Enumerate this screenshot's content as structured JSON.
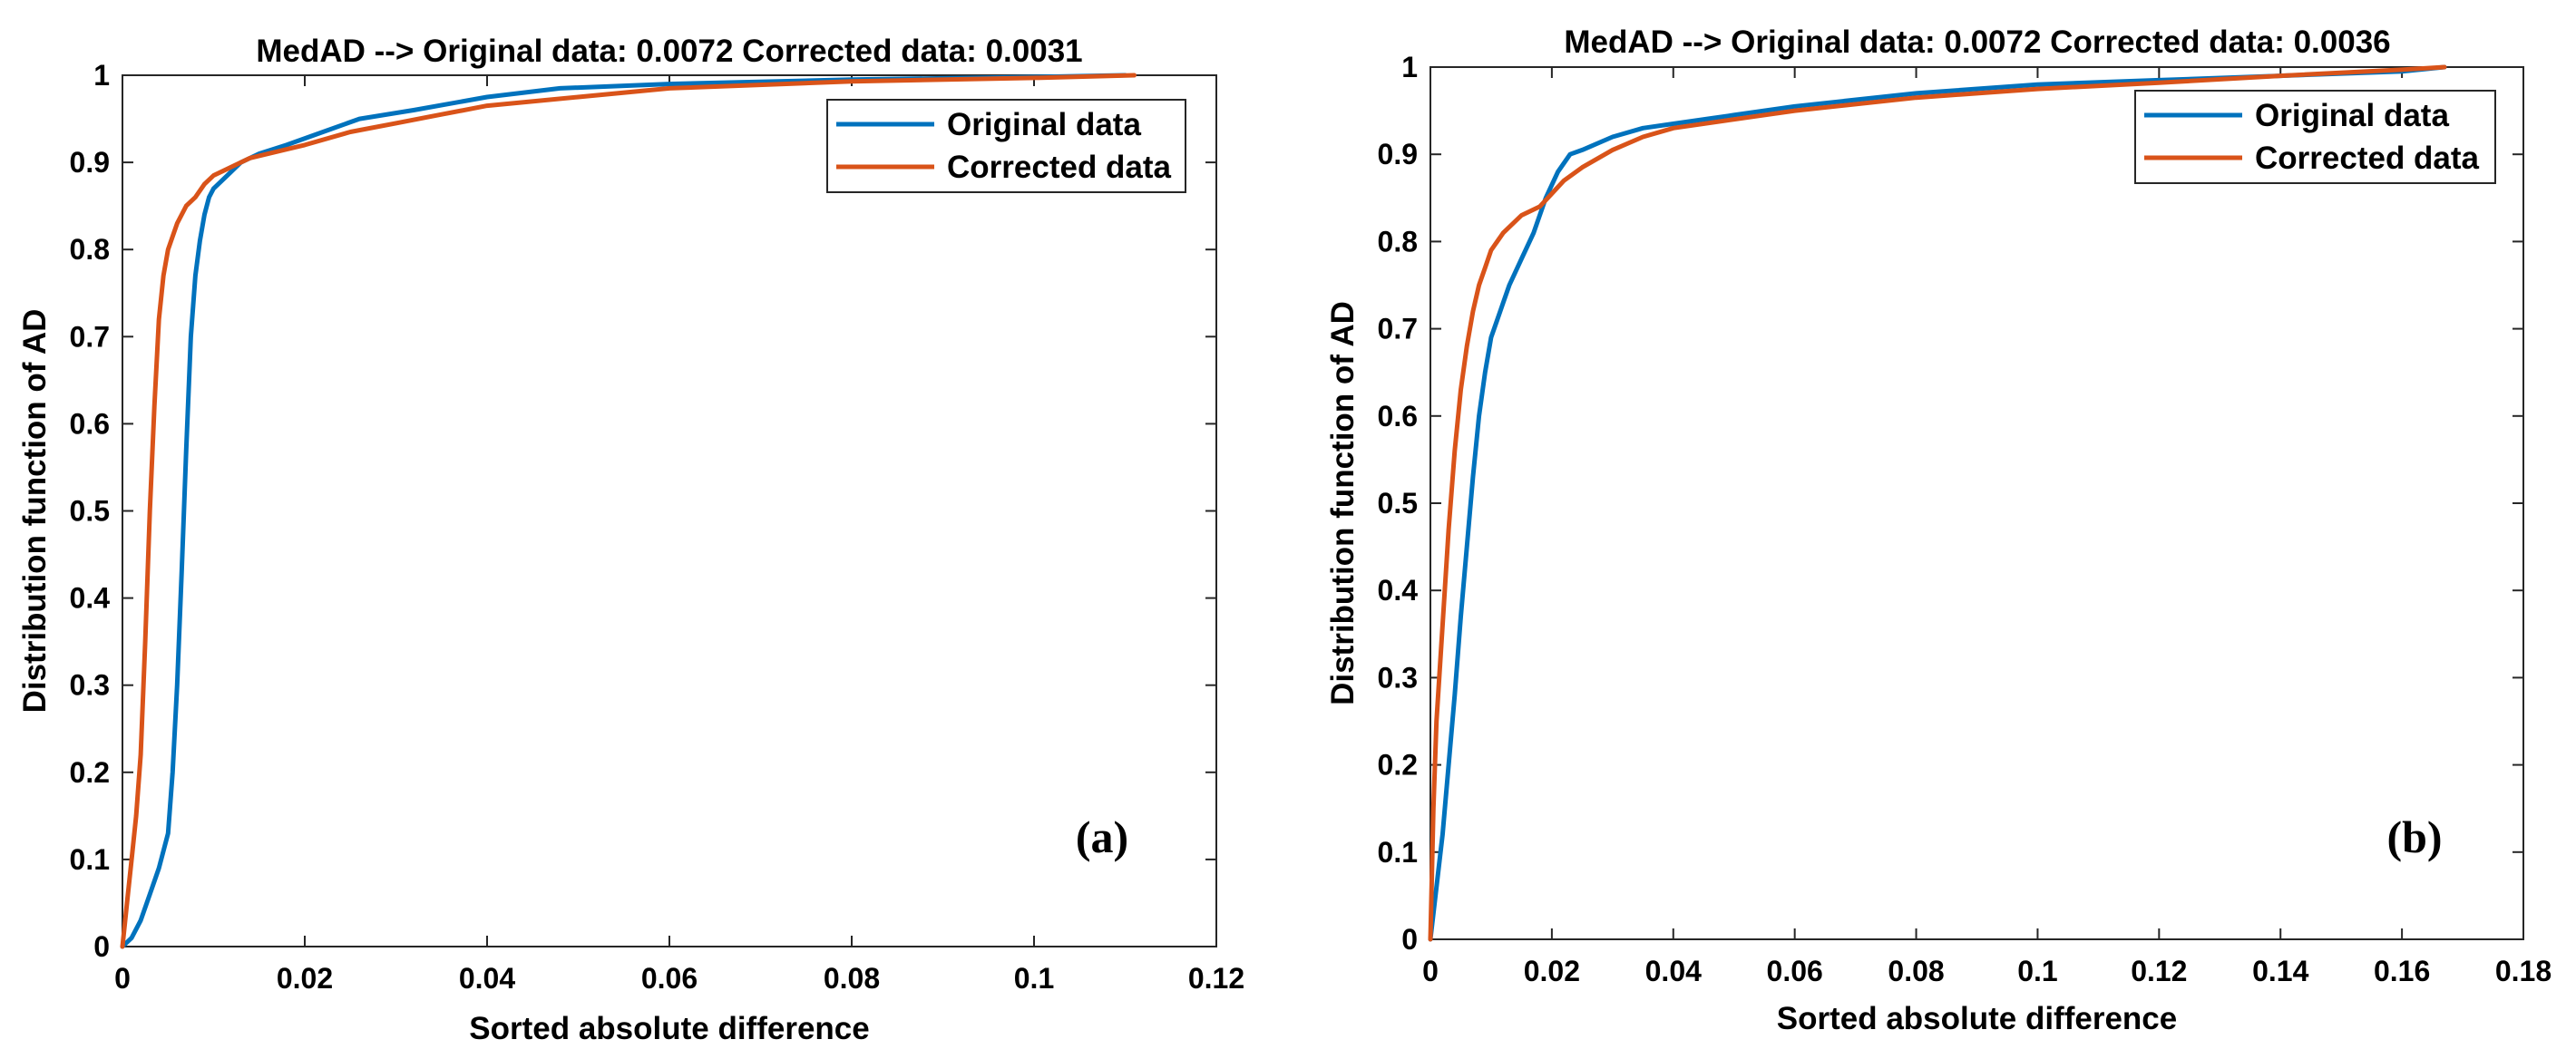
{
  "chart_data": [
    {
      "type": "line",
      "panel_label": "(a)",
      "title": "MedAD  --> Original data: 0.0072 Corrected data: 0.0031",
      "xlabel": "Sorted absolute difference",
      "ylabel": "Distribution function of AD",
      "xlim": [
        0,
        0.12
      ],
      "ylim": [
        0,
        1
      ],
      "xticks": [
        0,
        0.02,
        0.04,
        0.06,
        0.08,
        0.1,
        0.12
      ],
      "xtick_labels": [
        "0",
        "0.02",
        "0.04",
        "0.06",
        "0.08",
        "0.1",
        "0.12"
      ],
      "yticks": [
        0,
        0.1,
        0.2,
        0.3,
        0.4,
        0.5,
        0.6,
        0.7,
        0.8,
        0.9,
        1
      ],
      "ytick_labels": [
        "0",
        "0.1",
        "0.2",
        "0.3",
        "0.4",
        "0.5",
        "0.6",
        "0.7",
        "0.8",
        "0.9",
        "1"
      ],
      "legend_position": "top-right",
      "series": [
        {
          "name": "Original data",
          "color": "#0072BD",
          "x": [
            0,
            0.001,
            0.002,
            0.003,
            0.004,
            0.005,
            0.0055,
            0.006,
            0.0065,
            0.007,
            0.0075,
            0.008,
            0.0085,
            0.009,
            0.0095,
            0.01,
            0.011,
            0.012,
            0.013,
            0.015,
            0.018,
            0.022,
            0.026,
            0.032,
            0.04,
            0.048,
            0.06,
            0.08,
            0.1,
            0.11
          ],
          "y": [
            0,
            0.01,
            0.03,
            0.06,
            0.09,
            0.13,
            0.2,
            0.3,
            0.43,
            0.57,
            0.7,
            0.77,
            0.81,
            0.84,
            0.86,
            0.87,
            0.88,
            0.89,
            0.9,
            0.91,
            0.92,
            0.935,
            0.95,
            0.96,
            0.975,
            0.985,
            0.99,
            0.995,
            0.998,
            1.0
          ]
        },
        {
          "name": "Corrected data",
          "color": "#D95319",
          "x": [
            0,
            0.0005,
            0.001,
            0.0015,
            0.002,
            0.0025,
            0.003,
            0.0035,
            0.004,
            0.0045,
            0.005,
            0.006,
            0.007,
            0.008,
            0.009,
            0.01,
            0.012,
            0.014,
            0.018,
            0.02,
            0.025,
            0.03,
            0.035,
            0.04,
            0.05,
            0.06,
            0.08,
            0.1,
            0.111
          ],
          "y": [
            0,
            0.05,
            0.1,
            0.15,
            0.22,
            0.35,
            0.5,
            0.62,
            0.72,
            0.77,
            0.8,
            0.83,
            0.85,
            0.86,
            0.875,
            0.885,
            0.895,
            0.905,
            0.915,
            0.92,
            0.935,
            0.945,
            0.955,
            0.965,
            0.975,
            0.985,
            0.993,
            0.997,
            1.0
          ]
        }
      ]
    },
    {
      "type": "line",
      "panel_label": "(b)",
      "title": "MedAD  --> Original data: 0.0072 Corrected data: 0.0036",
      "xlabel": "Sorted absolute difference",
      "ylabel": "Distribution function of AD",
      "xlim": [
        0,
        0.18
      ],
      "ylim": [
        0,
        1
      ],
      "xticks": [
        0,
        0.02,
        0.04,
        0.06,
        0.08,
        0.1,
        0.12,
        0.14,
        0.16,
        0.18
      ],
      "xtick_labels": [
        "0",
        "0.02",
        "0.04",
        "0.06",
        "0.08",
        "0.1",
        "0.12",
        "0.14",
        "0.16",
        "0.18"
      ],
      "yticks": [
        0,
        0.1,
        0.2,
        0.3,
        0.4,
        0.5,
        0.6,
        0.7,
        0.8,
        0.9,
        1
      ],
      "ytick_labels": [
        "0",
        "0.1",
        "0.2",
        "0.3",
        "0.4",
        "0.5",
        "0.6",
        "0.7",
        "0.8",
        "0.9",
        "1"
      ],
      "legend_position": "top-right",
      "series": [
        {
          "name": "Original data",
          "color": "#0072BD",
          "x": [
            0,
            0.001,
            0.002,
            0.003,
            0.004,
            0.005,
            0.006,
            0.007,
            0.008,
            0.009,
            0.01,
            0.011,
            0.012,
            0.013,
            0.015,
            0.017,
            0.019,
            0.021,
            0.023,
            0.025,
            0.03,
            0.035,
            0.04,
            0.05,
            0.06,
            0.08,
            0.1,
            0.12,
            0.14,
            0.16,
            0.167
          ],
          "y": [
            0,
            0.06,
            0.12,
            0.2,
            0.28,
            0.37,
            0.45,
            0.53,
            0.6,
            0.65,
            0.69,
            0.71,
            0.73,
            0.75,
            0.78,
            0.81,
            0.85,
            0.88,
            0.9,
            0.905,
            0.92,
            0.93,
            0.935,
            0.945,
            0.955,
            0.97,
            0.98,
            0.985,
            0.99,
            0.995,
            1.0
          ]
        },
        {
          "name": "Corrected data",
          "color": "#D95319",
          "x": [
            0,
            0.0005,
            0.001,
            0.002,
            0.003,
            0.004,
            0.005,
            0.006,
            0.007,
            0.008,
            0.009,
            0.01,
            0.012,
            0.015,
            0.018,
            0.02,
            0.022,
            0.025,
            0.03,
            0.035,
            0.04,
            0.05,
            0.06,
            0.08,
            0.1,
            0.12,
            0.14,
            0.16,
            0.167
          ],
          "y": [
            0,
            0.15,
            0.25,
            0.36,
            0.47,
            0.56,
            0.63,
            0.68,
            0.72,
            0.75,
            0.77,
            0.79,
            0.81,
            0.83,
            0.84,
            0.855,
            0.87,
            0.885,
            0.905,
            0.92,
            0.93,
            0.94,
            0.95,
            0.965,
            0.975,
            0.982,
            0.99,
            0.997,
            1.0
          ]
        }
      ]
    }
  ]
}
